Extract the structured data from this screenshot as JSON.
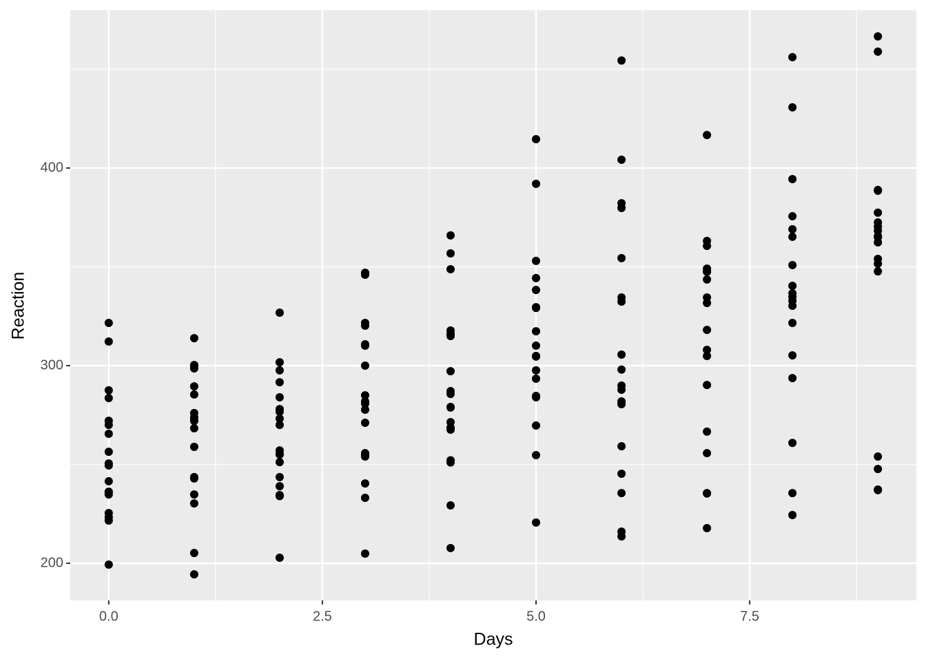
{
  "chart_data": {
    "type": "scatter",
    "xlabel": "Days",
    "ylabel": "Reaction",
    "xlim": [
      -0.45,
      9.45
    ],
    "ylim": [
      181.2,
      479.8
    ],
    "xticks": [
      {
        "value": 0,
        "label": "0.0"
      },
      2.5,
      {
        "value": 5,
        "label": "5.0"
      },
      7.5
    ],
    "yticks": [
      200,
      300,
      400
    ],
    "x_minor_grid": [
      1.25,
      3.75,
      6.25,
      8.75
    ],
    "y_minor_grid": [
      250,
      350,
      450
    ],
    "grid": true,
    "color": "#000000",
    "background": "#ebebeb",
    "x": [
      0,
      0,
      0,
      0,
      0,
      0,
      0,
      0,
      0,
      0,
      0,
      0,
      0,
      0,
      0,
      0,
      0,
      0,
      1,
      1,
      1,
      1,
      1,
      1,
      1,
      1,
      1,
      1,
      1,
      1,
      1,
      1,
      1,
      1,
      1,
      1,
      2,
      2,
      2,
      2,
      2,
      2,
      2,
      2,
      2,
      2,
      2,
      2,
      2,
      2,
      2,
      2,
      2,
      2,
      3,
      3,
      3,
      3,
      3,
      3,
      3,
      3,
      3,
      3,
      3,
      3,
      3,
      3,
      3,
      3,
      3,
      3,
      4,
      4,
      4,
      4,
      4,
      4,
      4,
      4,
      4,
      4,
      4,
      4,
      4,
      4,
      4,
      4,
      4,
      4,
      5,
      5,
      5,
      5,
      5,
      5,
      5,
      5,
      5,
      5,
      5,
      5,
      5,
      5,
      5,
      5,
      5,
      5,
      6,
      6,
      6,
      6,
      6,
      6,
      6,
      6,
      6,
      6,
      6,
      6,
      6,
      6,
      6,
      6,
      6,
      6,
      7,
      7,
      7,
      7,
      7,
      7,
      7,
      7,
      7,
      7,
      7,
      7,
      7,
      7,
      7,
      7,
      7,
      7,
      8,
      8,
      8,
      8,
      8,
      8,
      8,
      8,
      8,
      8,
      8,
      8,
      8,
      8,
      8,
      8,
      8,
      8,
      9,
      9,
      9,
      9,
      9,
      9,
      9,
      9,
      9,
      9,
      9,
      9,
      9,
      9,
      9,
      9,
      9,
      9
    ],
    "y": [
      321.6,
      312.2,
      287.5,
      283.6,
      272.1,
      270.0,
      265.5,
      256.4,
      250.5,
      249.5,
      241.5,
      236.2,
      236.0,
      234.8,
      225.4,
      223.3,
      221.6,
      199.3,
      313.9,
      300.3,
      299.8,
      298.6,
      289.5,
      285.4,
      276.0,
      273.9,
      272.5,
      272.0,
      268.3,
      258.9,
      243.6,
      242.9,
      234.8,
      230.3,
      205.2,
      194.4,
      326.8,
      301.7,
      297.6,
      291.6,
      284.0,
      278.0,
      276.7,
      273.2,
      270.0,
      257.1,
      255.7,
      255.0,
      251.2,
      243.6,
      239.0,
      234.5,
      234.0,
      202.8,
      347.0,
      346.0,
      321.6,
      320.2,
      310.8,
      310.1,
      300.0,
      285.0,
      281.9,
      280.8,
      277.7,
      271.1,
      255.7,
      254.7,
      254.0,
      240.4,
      233.1,
      204.9,
      365.9,
      356.8,
      348.8,
      317.8,
      316.0,
      315.0,
      297.2,
      287.1,
      285.7,
      279.1,
      278.8,
      271.4,
      268.6,
      267.6,
      252.1,
      251.0,
      229.3,
      207.7,
      414.6,
      392.0,
      353.0,
      344.3,
      338.3,
      329.6,
      329.2,
      317.4,
      310.1,
      304.9,
      304.6,
      297.6,
      293.4,
      284.7,
      284.0,
      269.7,
      254.7,
      220.6,
      454.4,
      404.2,
      382.2,
      379.8,
      354.4,
      334.5,
      332.4,
      305.6,
      298.0,
      289.9,
      287.8,
      281.9,
      280.5,
      259.2,
      245.3,
      235.5,
      213.6,
      216.0,
      416.7,
      363.1,
      360.6,
      349.1,
      347.7,
      343.6,
      334.5,
      331.7,
      318.1,
      308.0,
      304.9,
      290.2,
      266.6,
      255.7,
      235.5,
      217.8,
      347.5,
      235.3,
      456.1,
      430.7,
      394.4,
      375.6,
      369.0,
      365.2,
      350.9,
      340.4,
      336.6,
      334.8,
      332.8,
      330.3,
      321.6,
      305.2,
      293.7,
      260.9,
      235.5,
      224.4,
      466.6,
      458.9,
      388.9,
      388.5,
      377.4,
      372.5,
      370.4,
      368.3,
      365.5,
      362.4,
      354.0,
      351.6,
      347.7,
      254.0,
      247.7,
      237.3,
      237.0,
      365.0
    ]
  }
}
